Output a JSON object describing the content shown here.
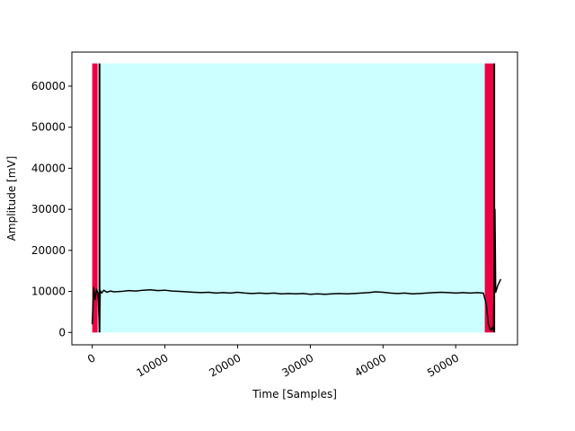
{
  "chart_data": {
    "type": "line",
    "title": "",
    "xlabel": "Time [Samples]",
    "ylabel": "Amplitude [mV]",
    "xlim": [
      -2800,
      58500
    ],
    "ylim": [
      -3000,
      68300
    ],
    "x_ticks": [
      0,
      10000,
      20000,
      30000,
      40000,
      50000
    ],
    "x_tick_labels": [
      "0",
      "10000",
      "20000",
      "30000",
      "40000",
      "50000"
    ],
    "x_tick_rotation": 30,
    "y_ticks": [
      0,
      10000,
      20000,
      30000,
      40000,
      50000,
      60000
    ],
    "y_tick_labels": [
      "0",
      "10000",
      "20000",
      "30000",
      "40000",
      "50000",
      "60000"
    ],
    "grid": false,
    "regions": [
      {
        "x0": 0,
        "x1": 750,
        "y0": 0,
        "y1": 65535,
        "color": "#ee0044"
      },
      {
        "x0": 750,
        "x1": 54000,
        "y0": 0,
        "y1": 65535,
        "color": "#ccffff"
      },
      {
        "x0": 54000,
        "x1": 55200,
        "y0": 0,
        "y1": 65535,
        "color": "#ee0044"
      }
    ],
    "vlines": [
      {
        "x": 1000,
        "y0": 0,
        "y1": 65535,
        "color": "#000000"
      },
      {
        "x": 55300,
        "y0": 0,
        "y1": 65535,
        "color": "#000000"
      }
    ],
    "series": [
      {
        "color": "#000000",
        "x": [
          0,
          200,
          400,
          600,
          800,
          1000,
          1100,
          1300,
          1600,
          2000,
          2500,
          3000,
          4000,
          5000,
          6000,
          7000,
          8000,
          9000,
          10000,
          11000,
          12000,
          13000,
          14000,
          15000,
          16000,
          17000,
          18000,
          19000,
          20000,
          21000,
          22000,
          23000,
          24000,
          25000,
          26000,
          27000,
          28000,
          29000,
          30000,
          31000,
          32000,
          33000,
          34000,
          35000,
          36000,
          37000,
          38000,
          39000,
          40000,
          41000,
          42000,
          43000,
          44000,
          45000,
          46000,
          47000,
          48000,
          49000,
          50000,
          51000,
          52000,
          53000,
          53800,
          54200,
          54500,
          54800,
          55000,
          55200,
          55400,
          55500,
          55800,
          56200
        ],
        "y": [
          2000,
          11000,
          8000,
          10500,
          9500,
          300,
          10200,
          9600,
          10300,
          9800,
          10100,
          9900,
          10000,
          10200,
          10100,
          10300,
          10400,
          10200,
          10300,
          10100,
          10000,
          9900,
          9800,
          9700,
          9800,
          9600,
          9700,
          9600,
          9800,
          9600,
          9500,
          9600,
          9500,
          9600,
          9400,
          9500,
          9400,
          9500,
          9300,
          9400,
          9300,
          9400,
          9500,
          9400,
          9500,
          9600,
          9700,
          9900,
          9800,
          9600,
          9500,
          9600,
          9400,
          9500,
          9600,
          9700,
          9800,
          9700,
          9600,
          9700,
          9600,
          9700,
          9600,
          7000,
          2000,
          500,
          1200,
          400,
          30000,
          9800,
          11500,
          13000
        ]
      }
    ]
  }
}
